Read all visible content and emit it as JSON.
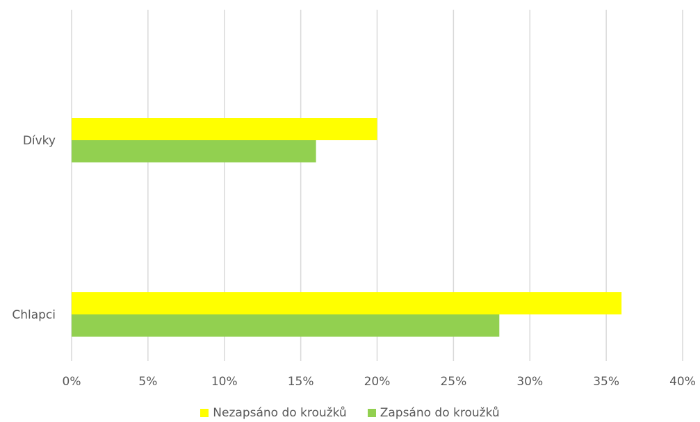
{
  "chart_data": {
    "type": "bar",
    "orientation": "horizontal",
    "categories": [
      "Dívky",
      "Chlapci"
    ],
    "series": [
      {
        "name": "Nezapsáno do kroužků",
        "color": "#FFFF00",
        "values": [
          20,
          36
        ]
      },
      {
        "name": "Zapsáno do kroužků",
        "color": "#92D050",
        "values": [
          16,
          28
        ]
      }
    ],
    "x_ticks": [
      "0%",
      "5%",
      "10%",
      "15%",
      "20%",
      "25%",
      "30%",
      "35%",
      "40%"
    ],
    "xlim": [
      0,
      40
    ],
    "unit": "%",
    "grid": true,
    "legend_position": "bottom"
  }
}
